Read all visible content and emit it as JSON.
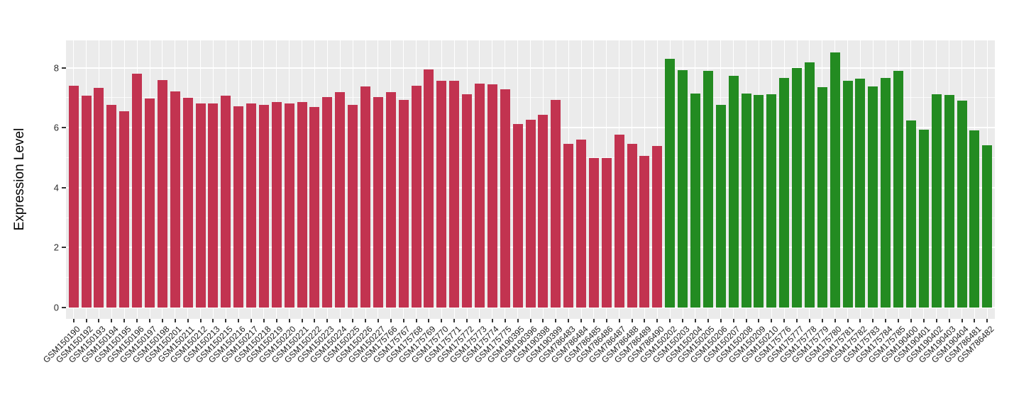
{
  "chart_data": {
    "type": "bar",
    "title": "",
    "xlabel": "",
    "ylabel": "Expression Level",
    "ylim": [
      0,
      8.9
    ],
    "yticks_major": [
      0,
      2,
      4,
      6,
      8
    ],
    "yticks_minor": [
      1,
      3,
      5,
      7
    ],
    "grid": true,
    "legend_position": "none",
    "panel_background_color": "#EBEBEB",
    "grid_color": "#FFFFFF",
    "axis_text_color": "#2b2b2b",
    "group_colors": {
      "group1": "#C23350",
      "group2": "#238B21"
    },
    "bars": [
      {
        "label": "GSM150190",
        "value": 7.4,
        "group": "group1"
      },
      {
        "label": "GSM150192",
        "value": 7.07,
        "group": "group1"
      },
      {
        "label": "GSM150193",
        "value": 7.34,
        "group": "group1"
      },
      {
        "label": "GSM150194",
        "value": 6.75,
        "group": "group1"
      },
      {
        "label": "GSM150195",
        "value": 6.55,
        "group": "group1"
      },
      {
        "label": "GSM150196",
        "value": 7.79,
        "group": "group1"
      },
      {
        "label": "GSM150197",
        "value": 6.97,
        "group": "group1"
      },
      {
        "label": "GSM150198",
        "value": 7.59,
        "group": "group1"
      },
      {
        "label": "GSM150201",
        "value": 7.2,
        "group": "group1"
      },
      {
        "label": "GSM150211",
        "value": 7.0,
        "group": "group1"
      },
      {
        "label": "GSM150212",
        "value": 6.8,
        "group": "group1"
      },
      {
        "label": "GSM150213",
        "value": 6.82,
        "group": "group1"
      },
      {
        "label": "GSM150215",
        "value": 7.07,
        "group": "group1"
      },
      {
        "label": "GSM150216",
        "value": 6.71,
        "group": "group1"
      },
      {
        "label": "GSM150217",
        "value": 6.81,
        "group": "group1"
      },
      {
        "label": "GSM150218",
        "value": 6.77,
        "group": "group1"
      },
      {
        "label": "GSM150219",
        "value": 6.86,
        "group": "group1"
      },
      {
        "label": "GSM150220",
        "value": 6.8,
        "group": "group1"
      },
      {
        "label": "GSM150221",
        "value": 6.86,
        "group": "group1"
      },
      {
        "label": "GSM150222",
        "value": 6.7,
        "group": "group1"
      },
      {
        "label": "GSM150223",
        "value": 7.01,
        "group": "group1"
      },
      {
        "label": "GSM150224",
        "value": 7.19,
        "group": "group1"
      },
      {
        "label": "GSM150225",
        "value": 6.75,
        "group": "group1"
      },
      {
        "label": "GSM150226",
        "value": 7.38,
        "group": "group1"
      },
      {
        "label": "GSM150227",
        "value": 7.03,
        "group": "group1"
      },
      {
        "label": "GSM175766",
        "value": 7.19,
        "group": "group1"
      },
      {
        "label": "GSM175767",
        "value": 6.93,
        "group": "group1"
      },
      {
        "label": "GSM175768",
        "value": 7.4,
        "group": "group1"
      },
      {
        "label": "GSM175769",
        "value": 7.94,
        "group": "group1"
      },
      {
        "label": "GSM175770",
        "value": 7.57,
        "group": "group1"
      },
      {
        "label": "GSM175771",
        "value": 7.57,
        "group": "group1"
      },
      {
        "label": "GSM175772",
        "value": 7.11,
        "group": "group1"
      },
      {
        "label": "GSM175773",
        "value": 7.47,
        "group": "group1"
      },
      {
        "label": "GSM175774",
        "value": 7.44,
        "group": "group1"
      },
      {
        "label": "GSM175775",
        "value": 7.28,
        "group": "group1"
      },
      {
        "label": "GSM190395",
        "value": 6.13,
        "group": "group1"
      },
      {
        "label": "GSM190396",
        "value": 6.27,
        "group": "group1"
      },
      {
        "label": "GSM190398",
        "value": 6.42,
        "group": "group1"
      },
      {
        "label": "GSM190399",
        "value": 6.92,
        "group": "group1"
      },
      {
        "label": "GSM786483",
        "value": 5.45,
        "group": "group1"
      },
      {
        "label": "GSM786484",
        "value": 5.61,
        "group": "group1"
      },
      {
        "label": "GSM786485",
        "value": 4.98,
        "group": "group1"
      },
      {
        "label": "GSM786486",
        "value": 4.98,
        "group": "group1"
      },
      {
        "label": "GSM786487",
        "value": 5.78,
        "group": "group1"
      },
      {
        "label": "GSM786488",
        "value": 5.45,
        "group": "group1"
      },
      {
        "label": "GSM786489",
        "value": 5.07,
        "group": "group1"
      },
      {
        "label": "GSM786490",
        "value": 5.4,
        "group": "group1"
      },
      {
        "label": "GSM150202",
        "value": 8.3,
        "group": "group2"
      },
      {
        "label": "GSM150203",
        "value": 7.93,
        "group": "group2"
      },
      {
        "label": "GSM150204",
        "value": 7.15,
        "group": "group2"
      },
      {
        "label": "GSM150205",
        "value": 7.89,
        "group": "group2"
      },
      {
        "label": "GSM150206",
        "value": 6.77,
        "group": "group2"
      },
      {
        "label": "GSM150207",
        "value": 7.74,
        "group": "group2"
      },
      {
        "label": "GSM150208",
        "value": 7.13,
        "group": "group2"
      },
      {
        "label": "GSM150209",
        "value": 7.1,
        "group": "group2"
      },
      {
        "label": "GSM150210",
        "value": 7.11,
        "group": "group2"
      },
      {
        "label": "GSM175776",
        "value": 7.67,
        "group": "group2"
      },
      {
        "label": "GSM175777",
        "value": 7.99,
        "group": "group2"
      },
      {
        "label": "GSM175778",
        "value": 8.17,
        "group": "group2"
      },
      {
        "label": "GSM175779",
        "value": 7.36,
        "group": "group2"
      },
      {
        "label": "GSM175780",
        "value": 8.5,
        "group": "group2"
      },
      {
        "label": "GSM175781",
        "value": 7.56,
        "group": "group2"
      },
      {
        "label": "GSM175782",
        "value": 7.64,
        "group": "group2"
      },
      {
        "label": "GSM175783",
        "value": 7.38,
        "group": "group2"
      },
      {
        "label": "GSM175784",
        "value": 7.67,
        "group": "group2"
      },
      {
        "label": "GSM175785",
        "value": 7.89,
        "group": "group2"
      },
      {
        "label": "GSM190400",
        "value": 6.24,
        "group": "group2"
      },
      {
        "label": "GSM190401",
        "value": 5.94,
        "group": "group2"
      },
      {
        "label": "GSM190402",
        "value": 7.11,
        "group": "group2"
      },
      {
        "label": "GSM190403",
        "value": 7.09,
        "group": "group2"
      },
      {
        "label": "GSM190404",
        "value": 6.91,
        "group": "group2"
      },
      {
        "label": "GSM786481",
        "value": 5.9,
        "group": "group2"
      },
      {
        "label": "GSM786482",
        "value": 5.41,
        "group": "group2"
      }
    ]
  }
}
